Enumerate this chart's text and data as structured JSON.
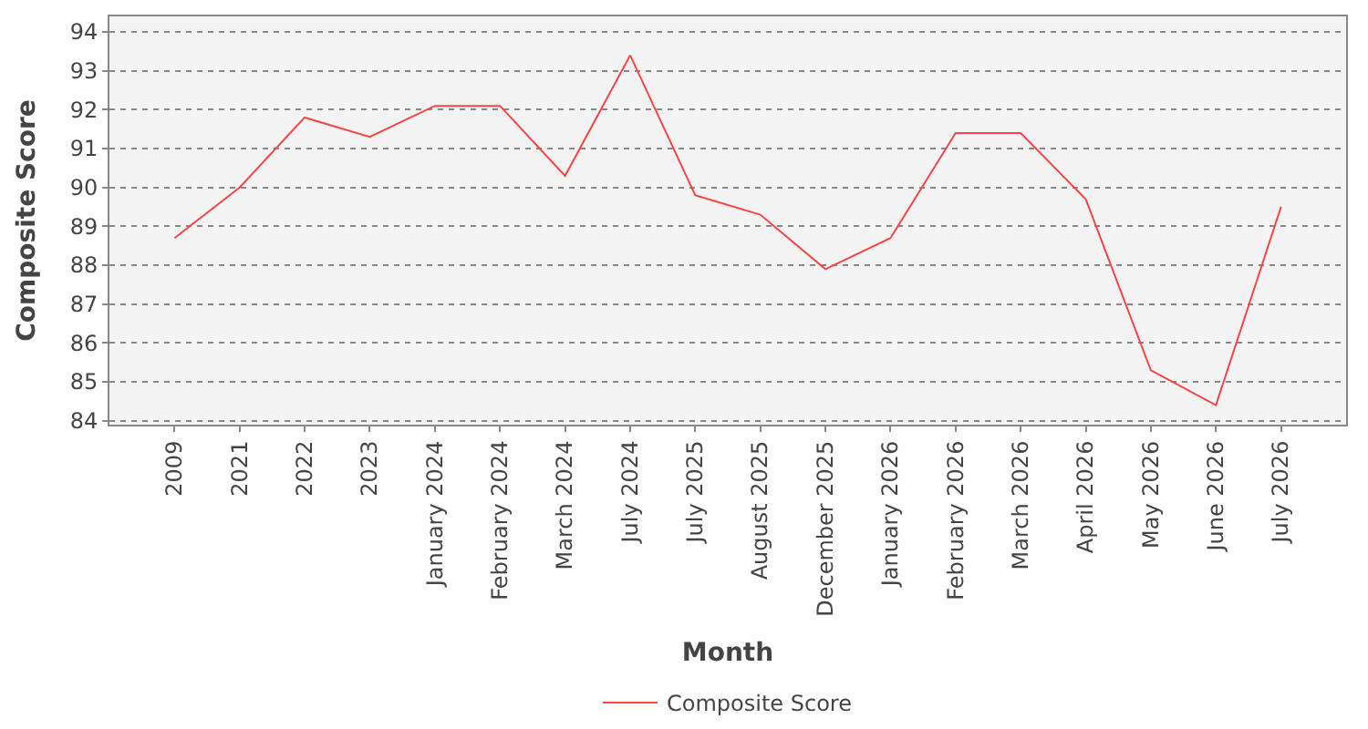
{
  "chart_data": {
    "type": "line",
    "xlabel": "Month",
    "ylabel": "Composite Score",
    "categories": [
      "2009",
      "2021",
      "2022",
      "2023",
      "January 2024",
      "February 2024",
      "March 2024",
      "July 2024",
      "July 2025",
      "August 2025",
      "December 2025",
      "January 2026",
      "February 2026",
      "March 2026",
      "April 2026",
      "May 2026",
      "June 2026",
      "July 2026"
    ],
    "series": [
      {
        "name": "Composite Score",
        "color": "#ff4444",
        "values": [
          88.7,
          90.0,
          91.8,
          91.3,
          92.1,
          92.1,
          90.3,
          93.4,
          89.8,
          89.3,
          87.9,
          88.7,
          91.4,
          91.4,
          89.7,
          85.3,
          84.4,
          89.5
        ]
      }
    ],
    "ylim": [
      83.9,
      94.4
    ],
    "yticks": [
      84,
      85,
      86,
      87,
      88,
      89,
      90,
      91,
      92,
      93,
      94
    ],
    "grid": "y",
    "legend": "bottom",
    "marker": "none",
    "line_style": "solid"
  }
}
